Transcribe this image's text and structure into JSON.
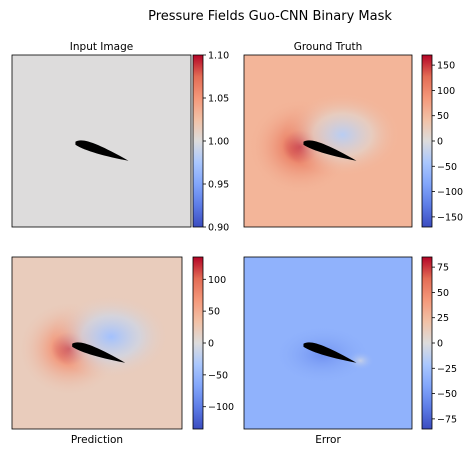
{
  "figure": {
    "title": "Pressure Fields  Guo-CNN Binary Mask"
  },
  "chart_data": [
    {
      "type": "heatmap",
      "title": "Input Image",
      "caption": "",
      "colormap": "coolwarm",
      "field": "uniform",
      "colorbar": {
        "min": 0.9,
        "max": 1.1,
        "ticks": [
          "1.10",
          "1.05",
          "1.00",
          "0.95",
          "0.90"
        ],
        "tick_values": [
          1.1,
          1.05,
          1.0,
          0.95,
          0.9
        ]
      },
      "background_value": 1.0
    },
    {
      "type": "heatmap",
      "title": "Ground Truth",
      "caption": "",
      "colormap": "coolwarm",
      "field": "pressure",
      "colorbar": {
        "min": -170,
        "max": 170,
        "ticks": [
          "150",
          "100",
          "50",
          "0",
          "−50",
          "−100",
          "−150"
        ],
        "tick_values": [
          150,
          100,
          50,
          0,
          -50,
          -100,
          -150
        ]
      },
      "background_value": 55,
      "stagnation_value": 160,
      "suction_value": -30
    },
    {
      "type": "heatmap",
      "title": "",
      "caption": "Prediction",
      "colormap": "coolwarm",
      "field": "pressure",
      "colorbar": {
        "min": -135,
        "max": 135,
        "ticks": [
          "100",
          "50",
          "0",
          "−50",
          "−100"
        ],
        "tick_values": [
          100,
          50,
          0,
          -50,
          -100
        ]
      },
      "background_value": 20,
      "stagnation_value": 120,
      "suction_value": -40
    },
    {
      "type": "heatmap",
      "title": "",
      "caption": "Error",
      "colormap": "coolwarm",
      "field": "error",
      "colorbar": {
        "min": -85,
        "max": 85,
        "ticks": [
          "75",
          "50",
          "25",
          "0",
          "−25",
          "−50",
          "−75"
        ],
        "tick_values": [
          75,
          50,
          25,
          0,
          -25,
          -50,
          -75
        ]
      },
      "background_value": -35
    }
  ]
}
